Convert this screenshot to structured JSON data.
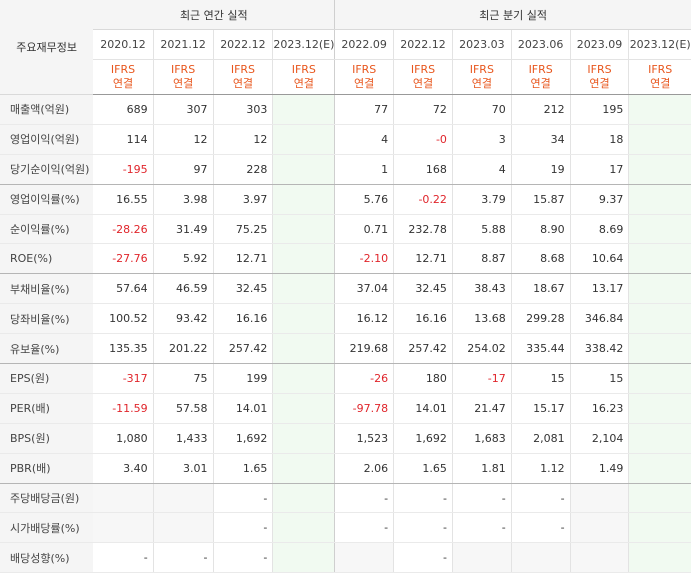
{
  "header": {
    "main_label": "주요재무정보",
    "annual_group": "최근 연간 실적",
    "quarter_group": "최근 분기 실적",
    "ifrs_line1": "IFRS",
    "ifrs_line2": "연결",
    "annual_periods": [
      "2020.12",
      "2021.12",
      "2022.12",
      "2023.12(E)"
    ],
    "quarter_periods": [
      "2022.09",
      "2022.12",
      "2023.03",
      "2023.06",
      "2023.09",
      "2023.12(E)"
    ]
  },
  "rows": [
    {
      "label": "매출액(억원)",
      "values": [
        "689",
        "307",
        "303",
        "",
        "77",
        "72",
        "70",
        "212",
        "195",
        ""
      ]
    },
    {
      "label": "영업이익(억원)",
      "values": [
        "114",
        "12",
        "12",
        "",
        "4",
        "-0",
        "3",
        "34",
        "18",
        ""
      ]
    },
    {
      "label": "당기순이익(억원)",
      "values": [
        "-195",
        "97",
        "228",
        "",
        "1",
        "168",
        "4",
        "19",
        "17",
        ""
      ]
    },
    {
      "label": "영업이익률(%)",
      "values": [
        "16.55",
        "3.98",
        "3.97",
        "",
        "5.76",
        "-0.22",
        "3.79",
        "15.87",
        "9.37",
        ""
      ]
    },
    {
      "label": "순이익률(%)",
      "values": [
        "-28.26",
        "31.49",
        "75.25",
        "",
        "0.71",
        "232.78",
        "5.88",
        "8.90",
        "8.69",
        ""
      ]
    },
    {
      "label": "ROE(%)",
      "values": [
        "-27.76",
        "5.92",
        "12.71",
        "",
        "-2.10",
        "12.71",
        "8.87",
        "8.68",
        "10.64",
        ""
      ]
    },
    {
      "label": "부채비율(%)",
      "values": [
        "57.64",
        "46.59",
        "32.45",
        "",
        "37.04",
        "32.45",
        "38.43",
        "18.67",
        "13.17",
        ""
      ]
    },
    {
      "label": "당좌비율(%)",
      "values": [
        "100.52",
        "93.42",
        "16.16",
        "",
        "16.12",
        "16.16",
        "13.68",
        "299.28",
        "346.84",
        ""
      ]
    },
    {
      "label": "유보율(%)",
      "values": [
        "135.35",
        "201.22",
        "257.42",
        "",
        "219.68",
        "257.42",
        "254.02",
        "335.44",
        "338.42",
        ""
      ]
    },
    {
      "label": "EPS(원)",
      "values": [
        "-317",
        "75",
        "199",
        "",
        "-26",
        "180",
        "-17",
        "15",
        "15",
        ""
      ]
    },
    {
      "label": "PER(배)",
      "values": [
        "-11.59",
        "57.58",
        "14.01",
        "",
        "-97.78",
        "14.01",
        "21.47",
        "15.17",
        "16.23",
        ""
      ]
    },
    {
      "label": "BPS(원)",
      "values": [
        "1,080",
        "1,433",
        "1,692",
        "",
        "1,523",
        "1,692",
        "1,683",
        "2,081",
        "2,104",
        ""
      ]
    },
    {
      "label": "PBR(배)",
      "values": [
        "3.40",
        "3.01",
        "1.65",
        "",
        "2.06",
        "1.65",
        "1.81",
        "1.12",
        "1.49",
        ""
      ]
    },
    {
      "label": "주당배당금(원)",
      "values": [
        "",
        "",
        "-",
        "",
        "-",
        "-",
        "-",
        "-",
        "",
        ""
      ]
    },
    {
      "label": "시가배당률(%)",
      "values": [
        "",
        "",
        "-",
        "",
        "-",
        "-",
        "-",
        "-",
        "",
        ""
      ]
    },
    {
      "label": "배당성향(%)",
      "values": [
        "-",
        "-",
        "-",
        "",
        "",
        "-",
        "",
        "",
        "",
        ""
      ]
    }
  ],
  "colors": {
    "negative": "#e0252b",
    "ifrs": "#e8571e",
    "estimate_bg": "#f1faf1"
  }
}
